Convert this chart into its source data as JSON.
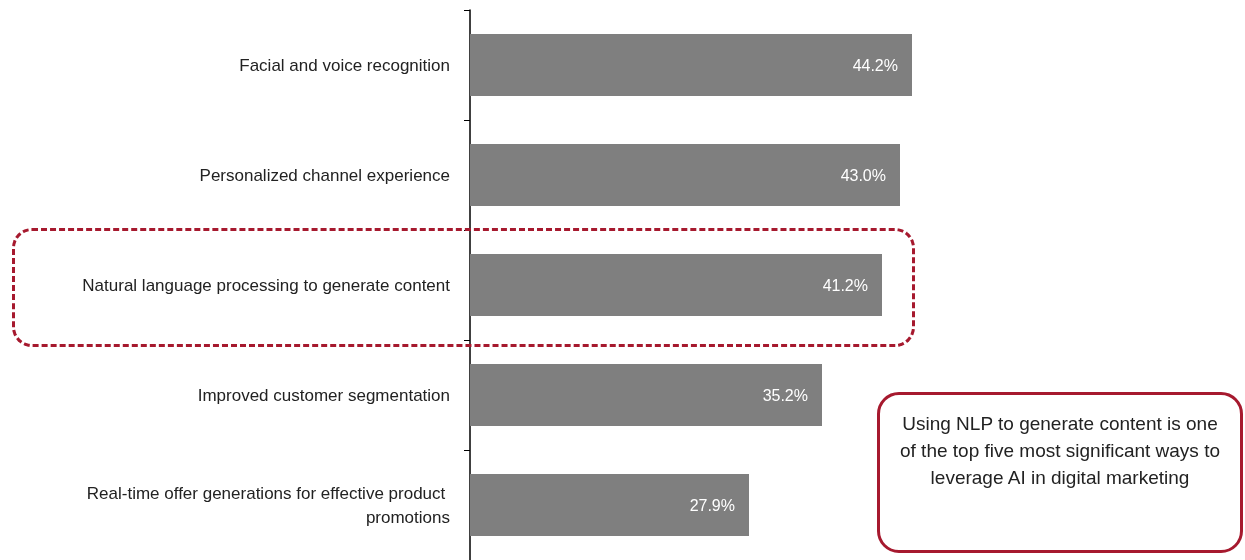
{
  "chart_data": {
    "type": "bar",
    "orientation": "horizontal",
    "categories": [
      "Facial and voice recognition",
      "Personalized channel experience",
      "Natural language processing to generate content",
      "Improved customer segmentation",
      "Real-time offer generations for effective product promotions"
    ],
    "values": [
      44.2,
      43.0,
      41.2,
      35.2,
      27.9
    ],
    "value_labels": [
      "44.2%",
      "43.0%",
      "41.2%",
      "35.2%",
      "27.9%"
    ],
    "color": "#7f7f7f",
    "annotations": [
      "Using NLP to generate content is one of the top five most significant ways to leverage AI in digital marketing"
    ],
    "grid": false
  }
}
